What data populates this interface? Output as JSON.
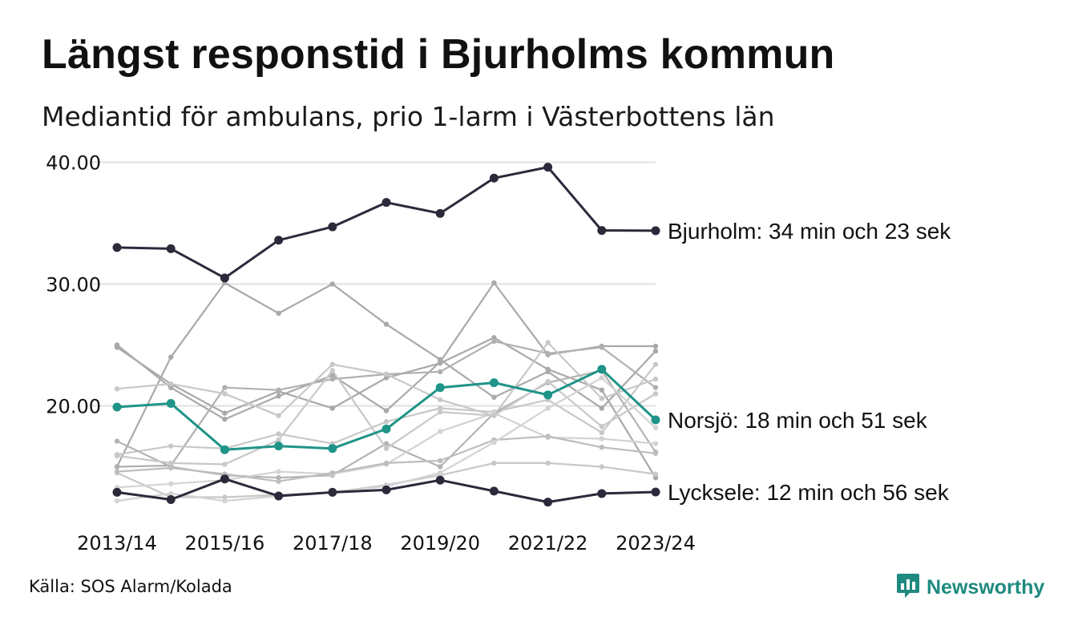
{
  "title": "Längst responstid i Bjurholms kommun",
  "subtitle": "Mediantid för ambulans, prio 1-larm i Västerbottens län",
  "source": "Källa: SOS Alarm/Kolada",
  "brand": {
    "name": "Newsworthy",
    "icon": "newsworthy-logo-icon",
    "color": "#1f8a7f"
  },
  "colors": {
    "highlight_dark": "#2b2a3b",
    "highlight_teal": "#1f9488",
    "grid": "#e0e0e0"
  },
  "chart_data": {
    "type": "line",
    "x": [
      "2013/14",
      "2014/15",
      "2015/16",
      "2016/17",
      "2017/18",
      "2018/19",
      "2019/20",
      "2020/21",
      "2021/22",
      "2022/23",
      "2023/24"
    ],
    "x_tick_labels": [
      "2013/14",
      "2015/16",
      "2017/18",
      "2019/20",
      "2021/22",
      "2023/24"
    ],
    "y_ticks": [
      "40.00",
      "30.00",
      "20.00"
    ],
    "ylim": [
      10.5,
      40.5
    ],
    "grid": true,
    "highlight_series": [
      {
        "name": "Bjurholm",
        "label": "Bjurholm: 34 min och 23 sek",
        "color": "#2b2a3b",
        "values": [
          33.0,
          32.9,
          30.5,
          33.6,
          34.7,
          36.7,
          35.8,
          38.7,
          39.6,
          34.4,
          34.38
        ]
      },
      {
        "name": "Norsjö",
        "label": "Norsjö: 18 min och 51 sek",
        "color": "#1f9488",
        "values": [
          19.9,
          20.2,
          16.4,
          16.7,
          16.5,
          18.1,
          21.5,
          21.9,
          20.9,
          23.0,
          18.85
        ]
      },
      {
        "name": "Lycksele",
        "label": "Lycksele: 12 min och 56 sek",
        "color": "#2b2a3b",
        "values": [
          12.9,
          12.3,
          14.0,
          12.6,
          12.9,
          13.1,
          13.9,
          13.0,
          12.1,
          12.8,
          12.93
        ]
      }
    ],
    "background_series": [
      {
        "color": "#a9a9a9",
        "values": [
          15.0,
          24.0,
          30.1,
          27.6,
          30.0,
          26.7,
          23.8,
          20.7,
          22.8,
          19.8,
          24.5
        ]
      },
      {
        "color": "#a9a9a9",
        "values": [
          25.0,
          21.5,
          18.9,
          20.8,
          22.5,
          19.6,
          23.6,
          30.1,
          24.2,
          24.9,
          24.9
        ]
      },
      {
        "color": "#a9a9a9",
        "values": [
          24.8,
          21.8,
          19.4,
          21.2,
          19.8,
          22.3,
          23.5,
          25.6,
          23.0,
          21.3,
          14.1
        ]
      },
      {
        "color": "#b0b0b0",
        "values": [
          15.0,
          15.1,
          21.5,
          21.3,
          22.2,
          22.6,
          22.8,
          25.3,
          24.3,
          24.8,
          21.5
        ]
      },
      {
        "color": "#c8c8c8",
        "values": [
          21.4,
          21.8,
          21.0,
          19.2,
          23.4,
          22.6,
          20.5,
          19.2,
          25.2,
          20.6,
          22.2
        ]
      },
      {
        "color": "#c8c8c8",
        "values": [
          16.0,
          16.7,
          16.5,
          17.7,
          16.9,
          18.7,
          19.8,
          19.5,
          20.5,
          17.8,
          23.4
        ]
      },
      {
        "color": "#b3b3b3",
        "values": [
          17.1,
          15.0,
          14.3,
          14.1,
          14.3,
          16.9,
          15.0,
          19.4,
          21.9,
          22.9,
          16.2
        ]
      },
      {
        "color": "#c8c8c8",
        "values": [
          14.5,
          12.5,
          12.5,
          12.7,
          12.9,
          13.5,
          14.3,
          15.3,
          15.3,
          15.0,
          14.4
        ]
      },
      {
        "color": "#d3d3d3",
        "values": [
          13.3,
          13.6,
          13.9,
          14.6,
          14.4,
          15.2,
          17.9,
          19.4,
          17.4,
          17.3,
          16.9
        ]
      },
      {
        "color": "#bdbdbd",
        "values": [
          14.6,
          14.9,
          14.4,
          13.8,
          14.5,
          15.3,
          15.5,
          17.2,
          17.5,
          16.6,
          16.1
        ]
      },
      {
        "color": "#c8c8c8",
        "values": [
          15.9,
          15.3,
          15.2,
          17.2,
          22.9,
          16.5,
          19.5,
          19.2,
          22.0,
          18.3,
          21.0
        ]
      },
      {
        "color": "#d3d3d3",
        "values": [
          12.2,
          12.8,
          12.2,
          12.6,
          12.9,
          13.4,
          14.5,
          17.0,
          19.8,
          22.3,
          18.2
        ]
      }
    ]
  }
}
